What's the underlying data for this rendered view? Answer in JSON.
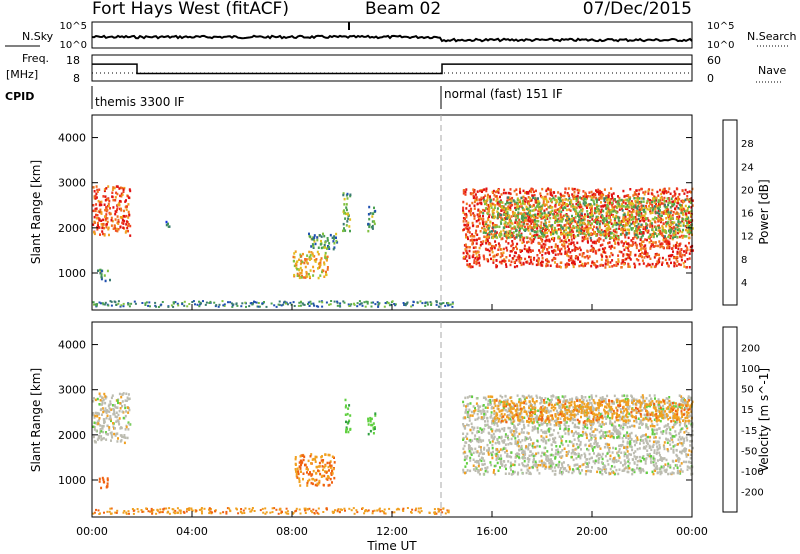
{
  "header": {
    "title": "Fort Hays West (fitACF)",
    "beam": "Beam 02",
    "date": "07/Dec/2015"
  },
  "top_panels": {
    "nsky_label": "N.Sky",
    "nsky_ticks": [
      "10^5",
      "10^0"
    ],
    "nsearch_label": "N.Search",
    "nsearch_ticks": [
      "10^5",
      "10^0"
    ],
    "freq_label": "Freq.",
    "freq_unit": "[MHz]",
    "freq_ticks": [
      "18",
      "8"
    ],
    "nave_label": "Nave",
    "nave_ticks": [
      "60",
      "0"
    ],
    "cpid_label": "CPID",
    "cpid_segments": [
      "themis 3300 IF",
      "normal (fast) 151 IF"
    ]
  },
  "x_axis": {
    "label": "Time UT",
    "ticks": [
      "00:00",
      "04:00",
      "08:00",
      "12:00",
      "16:00",
      "20:00",
      "00:00"
    ]
  },
  "power_panel": {
    "ylabel": "Slant Range [km]",
    "yticks": [
      "1000",
      "2000",
      "3000",
      "4000"
    ],
    "colorbar_label": "Power [dB]",
    "colorbar_ticks": [
      "4",
      "8",
      "12",
      "16",
      "20",
      "24",
      "28"
    ]
  },
  "velocity_panel": {
    "ylabel": "Slant Range [km]",
    "yticks": [
      "1000",
      "2000",
      "3000",
      "4000"
    ],
    "colorbar_label": "Velocity [m s^-1]",
    "colorbar_ticks": [
      "200",
      "100",
      "50",
      "15",
      "-15",
      "-50",
      "-100",
      "-200"
    ]
  },
  "colors": {
    "power_scale": [
      "#1030e0",
      "#2050b0",
      "#3a7a70",
      "#4aa050",
      "#80c040",
      "#e0c020",
      "#f0a020",
      "#f07020",
      "#f04020",
      "#e01010"
    ],
    "velocity_scale": [
      "#2030b0",
      "#2a60a0",
      "#30a040",
      "#60d040",
      "#bcbcb0",
      "#f0a020",
      "#f06010",
      "#e02010"
    ],
    "cpid_change_line": "#aaaaaa"
  },
  "chart_data": {
    "type": "heatmap",
    "time_range_hours": [
      0,
      24
    ],
    "range_km": [
      180,
      4500
    ],
    "cpid_change_time_hours": 14.0,
    "frequency_mhz": {
      "segments": [
        {
          "start_hours": 0,
          "end_hours": 1.8,
          "value": 14.5
        },
        {
          "start_hours": 1.8,
          "end_hours": 14.0,
          "value": 10.9
        },
        {
          "start_hours": 14.0,
          "end_hours": 24,
          "value": 14.5
        }
      ]
    },
    "power_regions": [
      {
        "t0": 0.0,
        "t1": 1.5,
        "r0": 1850,
        "r1": 2950,
        "power_db": 24
      },
      {
        "t0": 0.2,
        "t1": 0.7,
        "r0": 850,
        "r1": 1100,
        "power_db": 10
      },
      {
        "t0": 2.9,
        "t1": 3.1,
        "r0": 2000,
        "r1": 2200,
        "power_db": 6
      },
      {
        "t0": 8.0,
        "t1": 9.4,
        "r0": 900,
        "r1": 1500,
        "power_db": 18
      },
      {
        "t0": 8.6,
        "t1": 9.8,
        "r0": 1550,
        "r1": 1900,
        "power_db": 10
      },
      {
        "t0": 10.0,
        "t1": 10.3,
        "r0": 1950,
        "r1": 2800,
        "power_db": 10
      },
      {
        "t0": 11.0,
        "t1": 11.3,
        "r0": 1950,
        "r1": 2500,
        "power_db": 10
      },
      {
        "t0": 14.8,
        "t1": 24.0,
        "r0": 1150,
        "r1": 2900,
        "power_db": 26
      },
      {
        "t0": 15.6,
        "t1": 24.0,
        "r0": 1800,
        "r1": 2700,
        "power_db": 14
      }
    ],
    "velocity_regions": [
      {
        "t0": 0.0,
        "t1": 1.5,
        "r0": 1850,
        "r1": 2950,
        "velocity": 0
      },
      {
        "t0": 0.2,
        "t1": 0.6,
        "r0": 850,
        "r1": 1100,
        "velocity": -70
      },
      {
        "t0": 8.1,
        "t1": 9.7,
        "r0": 900,
        "r1": 1600,
        "velocity": -50
      },
      {
        "t0": 10.1,
        "t1": 10.3,
        "r0": 2000,
        "r1": 2800,
        "velocity": 40
      },
      {
        "t0": 11.0,
        "t1": 11.3,
        "r0": 2000,
        "r1": 2500,
        "velocity": 40
      },
      {
        "t0": 14.8,
        "t1": 24.0,
        "r0": 1150,
        "r1": 2900,
        "velocity": 0
      },
      {
        "t0": 16.0,
        "t1": 24.0,
        "r0": 2300,
        "r1": 2800,
        "velocity": -40
      }
    ]
  }
}
